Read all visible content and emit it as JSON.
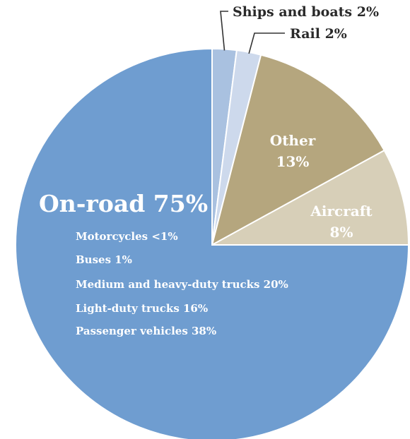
{
  "chart_data": {
    "type": "pie",
    "slices": [
      {
        "label": "Ships and boats",
        "value_text": "2%",
        "value": 2,
        "color": "#a9c1e0"
      },
      {
        "label": "Rail",
        "value_text": "2%",
        "value": 2,
        "color": "#cdd9ec"
      },
      {
        "label": "Other",
        "value_text": "13%",
        "value": 13,
        "color": "#b5a67e"
      },
      {
        "label": "Aircraft",
        "value_text": "8%",
        "value": 8,
        "color": "#d7cfb8"
      },
      {
        "label": "On-road",
        "value_text": "75%",
        "value": 75,
        "color": "#6f9dd0"
      }
    ],
    "callouts": {
      "ships": "Ships and boats 2%",
      "rail": "Rail 2%"
    },
    "slice_labels": {
      "other_name": "Other",
      "other_pct": "13%",
      "aircraft_name": "Aircraft",
      "aircraft_pct": "8%",
      "onroad": "On-road 75%"
    },
    "onroad_breakdown": [
      "Motorcycles <1%",
      "Buses 1%",
      "Medium and heavy-duty trucks 20%",
      "Light-duty trucks 16%",
      "Passenger vehicles 38%"
    ],
    "line_color": "#333333"
  }
}
